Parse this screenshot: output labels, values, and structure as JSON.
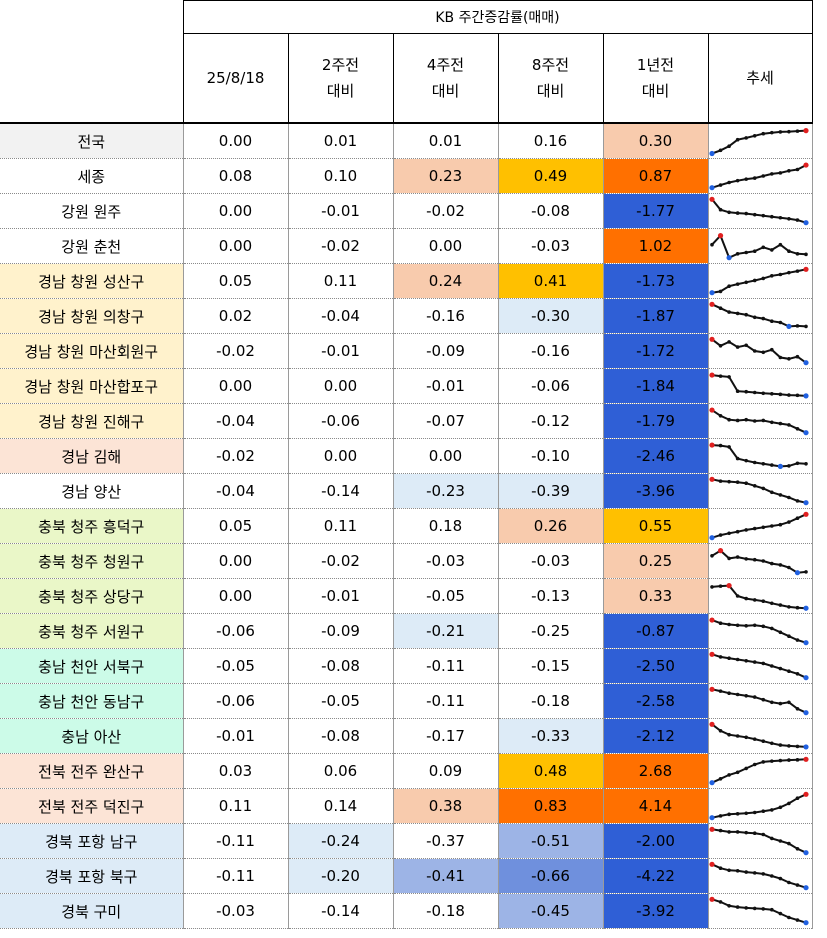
{
  "header": {
    "group_title": "KB 주간증감률(매매)",
    "columns": [
      {
        "line1": "25/8/18",
        "line2": ""
      },
      {
        "line1": "2주전",
        "line2": "대비"
      },
      {
        "line1": "4주전",
        "line2": "대비"
      },
      {
        "line1": "8주전",
        "line2": "대비"
      },
      {
        "line1": "1년전",
        "line2": "대비"
      },
      {
        "line1": "추세",
        "line2": ""
      }
    ]
  },
  "rows": [
    {
      "name": "전국",
      "name_bg": "#f2f2f2",
      "vals": [
        "0.00",
        "0.01",
        "0.01",
        "0.16",
        "0.30"
      ],
      "bgs": [
        "",
        "",
        "",
        "",
        "#f8cbad"
      ],
      "trend": [
        0.02,
        0.14,
        0.3,
        0.55,
        0.62,
        0.7,
        0.78,
        0.82,
        0.85,
        0.86,
        0.88,
        0.9
      ],
      "trend_end": "max"
    },
    {
      "name": "세종",
      "name_bg": "#ffffff",
      "vals": [
        "0.08",
        "0.10",
        "0.23",
        "0.49",
        "0.87"
      ],
      "bgs": [
        "",
        "",
        "#f8cbad",
        "#ffc000",
        "#ff7000"
      ],
      "trend": [
        0.05,
        0.15,
        0.25,
        0.32,
        0.38,
        0.42,
        0.5,
        0.58,
        0.62,
        0.7,
        0.75,
        0.92
      ],
      "trend_end": "max"
    },
    {
      "name": "강원 원주",
      "name_bg": "#ffffff",
      "vals": [
        "0.00",
        "-0.01",
        "-0.02",
        "-0.08",
        "-1.77"
      ],
      "bgs": [
        "",
        "",
        "",
        "",
        "#2f5fd6"
      ],
      "trend": [
        0.95,
        0.55,
        0.45,
        0.42,
        0.4,
        0.36,
        0.32,
        0.28,
        0.24,
        0.2,
        0.15,
        0.05
      ],
      "trend_end": "min"
    },
    {
      "name": "강원 춘천",
      "name_bg": "#ffffff",
      "vals": [
        "0.00",
        "-0.02",
        "0.00",
        "-0.03",
        "1.02"
      ],
      "bgs": [
        "",
        "",
        "",
        "",
        "#ff7000"
      ],
      "trend": [
        0.55,
        0.9,
        0.05,
        0.2,
        0.25,
        0.3,
        0.45,
        0.35,
        0.55,
        0.3,
        0.2,
        0.18
      ],
      "trend_end": "none"
    },
    {
      "name": "경남 창원 성산구",
      "name_bg": "#fff2cc",
      "vals": [
        "0.05",
        "0.11",
        "0.24",
        "0.41",
        "-1.73"
      ],
      "bgs": [
        "",
        "",
        "#f8cbad",
        "#ffc000",
        "#2f5fd6"
      ],
      "trend": [
        0.05,
        0.1,
        0.3,
        0.38,
        0.45,
        0.52,
        0.6,
        0.7,
        0.75,
        0.82,
        0.88,
        0.95
      ],
      "trend_end": "max"
    },
    {
      "name": "경남 창원 의창구",
      "name_bg": "#fff2cc",
      "vals": [
        "0.02",
        "-0.04",
        "-0.16",
        "-0.30",
        "-1.87"
      ],
      "bgs": [
        "",
        "",
        "",
        "#ddebf7",
        "#2f5fd6"
      ],
      "trend": [
        0.95,
        0.8,
        0.65,
        0.6,
        0.55,
        0.45,
        0.4,
        0.3,
        0.25,
        0.1,
        0.12,
        0.1
      ],
      "trend_end": "min"
    },
    {
      "name": "경남 창원 마산회원구",
      "name_bg": "#fff2cc",
      "vals": [
        "-0.02",
        "-0.01",
        "-0.09",
        "-0.16",
        "-1.72"
      ],
      "bgs": [
        "",
        "",
        "",
        "",
        "#2f5fd6"
      ],
      "trend": [
        0.95,
        0.7,
        0.85,
        0.65,
        0.72,
        0.5,
        0.45,
        0.55,
        0.25,
        0.2,
        0.28,
        0.05
      ],
      "trend_end": "min"
    },
    {
      "name": "경남 창원 마산합포구",
      "name_bg": "#fff2cc",
      "vals": [
        "0.00",
        "0.00",
        "-0.01",
        "-0.06",
        "-1.84"
      ],
      "bgs": [
        "",
        "",
        "",
        "",
        "#2f5fd6"
      ],
      "trend": [
        0.92,
        0.88,
        0.85,
        0.3,
        0.28,
        0.25,
        0.22,
        0.2,
        0.18,
        0.15,
        0.14,
        0.12
      ],
      "trend_end": "none"
    },
    {
      "name": "경남 창원 진해구",
      "name_bg": "#fff2cc",
      "vals": [
        "-0.04",
        "-0.06",
        "-0.07",
        "-0.12",
        "-1.79"
      ],
      "bgs": [
        "",
        "",
        "",
        "",
        "#2f5fd6"
      ],
      "trend": [
        0.92,
        0.7,
        0.55,
        0.52,
        0.55,
        0.5,
        0.52,
        0.45,
        0.4,
        0.35,
        0.2,
        0.05
      ],
      "trend_end": "min"
    },
    {
      "name": "경남 김해",
      "name_bg": "#fce4d6",
      "vals": [
        "-0.02",
        "0.00",
        "0.00",
        "-0.10",
        "-2.46"
      ],
      "bgs": [
        "",
        "",
        "",
        "",
        "#2f5fd6"
      ],
      "trend": [
        0.92,
        0.9,
        0.85,
        0.4,
        0.32,
        0.25,
        0.2,
        0.15,
        0.1,
        0.12,
        0.22,
        0.2
      ],
      "trend_end": "none"
    },
    {
      "name": "경남 양산",
      "name_bg": "#ffffff",
      "vals": [
        "-0.04",
        "-0.14",
        "-0.23",
        "-0.39",
        "-3.96"
      ],
      "bgs": [
        "",
        "",
        "#ddebf7",
        "#ddebf7",
        "#2f5fd6"
      ],
      "trend": [
        0.95,
        0.88,
        0.86,
        0.84,
        0.8,
        0.7,
        0.6,
        0.45,
        0.35,
        0.25,
        0.12,
        0.05
      ],
      "trend_end": "min"
    },
    {
      "name": "충북 청주 흥덕구",
      "name_bg": "#eaf7c8",
      "vals": [
        "0.05",
        "0.11",
        "0.18",
        "0.26",
        "0.55"
      ],
      "bgs": [
        "",
        "",
        "",
        "#f8cbad",
        "#ffc000"
      ],
      "trend": [
        0.05,
        0.15,
        0.22,
        0.28,
        0.35,
        0.4,
        0.45,
        0.5,
        0.55,
        0.65,
        0.8,
        0.95
      ],
      "trend_end": "max"
    },
    {
      "name": "충북 청주 청원구",
      "name_bg": "#eaf7c8",
      "vals": [
        "0.00",
        "-0.02",
        "-0.03",
        "-0.03",
        "0.25"
      ],
      "bgs": [
        "",
        "",
        "",
        "",
        "#f8cbad"
      ],
      "trend": [
        0.7,
        0.9,
        0.6,
        0.65,
        0.58,
        0.55,
        0.5,
        0.4,
        0.35,
        0.25,
        0.05,
        0.08
      ],
      "trend_end": "none"
    },
    {
      "name": "충북 청주 상당구",
      "name_bg": "#eaf7c8",
      "vals": [
        "0.00",
        "-0.01",
        "-0.05",
        "-0.13",
        "0.33"
      ],
      "bgs": [
        "",
        "",
        "",
        "",
        "#f8cbad"
      ],
      "trend": [
        0.85,
        0.88,
        0.9,
        0.5,
        0.4,
        0.35,
        0.3,
        0.22,
        0.15,
        0.08,
        0.05,
        0.03
      ],
      "trend_end": "min"
    },
    {
      "name": "충북 청주 서원구",
      "name_bg": "#eaf7c8",
      "vals": [
        "-0.06",
        "-0.09",
        "-0.21",
        "-0.25",
        "-0.87"
      ],
      "bgs": [
        "",
        "",
        "#ddebf7",
        "",
        "#2f5fd6"
      ],
      "trend": [
        0.92,
        0.8,
        0.75,
        0.72,
        0.7,
        0.72,
        0.68,
        0.6,
        0.45,
        0.3,
        0.15,
        0.05
      ],
      "trend_end": "min"
    },
    {
      "name": "충남 천안 서북구",
      "name_bg": "#ccfbe8",
      "vals": [
        "-0.05",
        "-0.08",
        "-0.11",
        "-0.15",
        "-2.50"
      ],
      "bgs": [
        "",
        "",
        "",
        "",
        "#2f5fd6"
      ],
      "trend": [
        0.95,
        0.85,
        0.8,
        0.75,
        0.7,
        0.65,
        0.6,
        0.5,
        0.4,
        0.3,
        0.2,
        0.05
      ],
      "trend_end": "min"
    },
    {
      "name": "충남 천안 동남구",
      "name_bg": "#ccfbe8",
      "vals": [
        "-0.06",
        "-0.05",
        "-0.11",
        "-0.18",
        "-2.58"
      ],
      "bgs": [
        "",
        "",
        "",
        "",
        "#2f5fd6"
      ],
      "trend": [
        0.95,
        0.88,
        0.8,
        0.75,
        0.7,
        0.65,
        0.55,
        0.45,
        0.4,
        0.45,
        0.2,
        0.05
      ],
      "trend_end": "min"
    },
    {
      "name": "충남 아산",
      "name_bg": "#ccfbe8",
      "vals": [
        "-0.01",
        "-0.08",
        "-0.17",
        "-0.33",
        "-2.12"
      ],
      "bgs": [
        "",
        "",
        "",
        "#ddebf7",
        "#2f5fd6"
      ],
      "trend": [
        0.95,
        0.7,
        0.55,
        0.5,
        0.45,
        0.38,
        0.3,
        0.22,
        0.15,
        0.12,
        0.1,
        0.08
      ],
      "trend_end": "min"
    },
    {
      "name": "전북 전주 완산구",
      "name_bg": "#fce4d6",
      "vals": [
        "0.03",
        "0.06",
        "0.09",
        "0.48",
        "2.68"
      ],
      "bgs": [
        "",
        "",
        "",
        "#ffc000",
        "#ff7000"
      ],
      "trend": [
        0.05,
        0.2,
        0.35,
        0.45,
        0.6,
        0.75,
        0.85,
        0.88,
        0.9,
        0.92,
        0.93,
        0.95
      ],
      "trend_end": "max"
    },
    {
      "name": "전북 전주 덕진구",
      "name_bg": "#fce4d6",
      "vals": [
        "0.11",
        "0.14",
        "0.38",
        "0.83",
        "4.14"
      ],
      "bgs": [
        "",
        "",
        "#f8cbad",
        "#ff7000",
        "#ff7000"
      ],
      "trend": [
        0.05,
        0.12,
        0.18,
        0.2,
        0.22,
        0.25,
        0.3,
        0.35,
        0.45,
        0.6,
        0.8,
        0.95
      ],
      "trend_end": "max"
    },
    {
      "name": "경북 포항 남구",
      "name_bg": "#ddebf7",
      "vals": [
        "-0.11",
        "-0.24",
        "-0.37",
        "-0.51",
        "-2.00"
      ],
      "bgs": [
        "",
        "#ddebf7",
        "",
        "#9db4e6",
        "#2f5fd6"
      ],
      "trend": [
        0.95,
        0.9,
        0.85,
        0.85,
        0.82,
        0.8,
        0.75,
        0.6,
        0.5,
        0.4,
        0.2,
        0.05
      ],
      "trend_end": "min"
    },
    {
      "name": "경북 포항 북구",
      "name_bg": "#ddebf7",
      "vals": [
        "-0.11",
        "-0.20",
        "-0.41",
        "-0.66",
        "-4.22"
      ],
      "bgs": [
        "",
        "#ddebf7",
        "#9db4e6",
        "#6f90dd",
        "#2f5fd6"
      ],
      "trend": [
        0.95,
        0.8,
        0.72,
        0.7,
        0.65,
        0.62,
        0.58,
        0.5,
        0.4,
        0.25,
        0.15,
        0.05
      ],
      "trend_end": "min"
    },
    {
      "name": "경북 구미",
      "name_bg": "#ddebf7",
      "vals": [
        "-0.03",
        "-0.14",
        "-0.18",
        "-0.45",
        "-3.92"
      ],
      "bgs": [
        "",
        "",
        "",
        "#9db4e6",
        "#2f5fd6"
      ],
      "trend": [
        0.95,
        0.85,
        0.7,
        0.65,
        0.62,
        0.6,
        0.58,
        0.55,
        0.4,
        0.25,
        0.15,
        0.05
      ],
      "trend_end": "min"
    }
  ]
}
